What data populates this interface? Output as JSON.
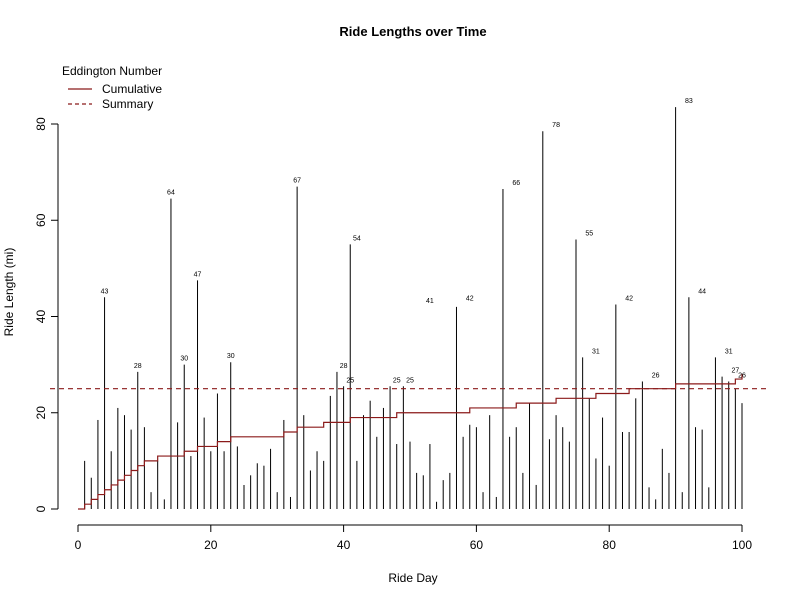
{
  "chart_data": {
    "type": "line",
    "title": "Ride Lengths over Time",
    "xlabel": "Ride Day",
    "ylabel": "Ride Length (mi)",
    "xlim": [
      0,
      100
    ],
    "ylim": [
      0,
      85
    ],
    "x_ticks": [
      0,
      20,
      40,
      60,
      80,
      100
    ],
    "y_ticks": [
      0,
      20,
      40,
      60,
      80
    ],
    "grid": false,
    "legend": {
      "title": "Eddington Number",
      "placement": "top-left",
      "entries": [
        {
          "label": "Cumulative",
          "style": "solid",
          "color": "#8b1a1a"
        },
        {
          "label": "Summary",
          "style": "dashed",
          "color": "#8b1a1a"
        }
      ]
    },
    "rides": {
      "x": [
        1,
        2,
        3,
        4,
        5,
        6,
        7,
        8,
        9,
        10,
        11,
        12,
        13,
        14,
        15,
        16,
        17,
        18,
        19,
        20,
        21,
        22,
        23,
        24,
        25,
        26,
        27,
        28,
        29,
        30,
        31,
        32,
        33,
        34,
        35,
        36,
        37,
        38,
        39,
        40,
        41,
        42,
        43,
        44,
        45,
        46,
        47,
        48,
        49,
        50,
        51,
        52,
        53,
        54,
        55,
        56,
        57,
        58,
        59,
        60,
        61,
        62,
        63,
        64,
        65,
        66,
        67,
        68,
        69,
        70,
        71,
        72,
        73,
        74,
        75,
        76,
        77,
        78,
        79,
        80,
        81,
        82,
        83,
        84,
        85,
        86,
        87,
        88,
        89,
        90,
        91,
        92,
        93,
        94,
        95,
        96,
        97,
        98,
        99,
        100
      ],
      "y": [
        10,
        6.5,
        18.5,
        44,
        12,
        21,
        19.5,
        16.5,
        28.5,
        17,
        3.5,
        10,
        2,
        64.5,
        18,
        30,
        11,
        47.5,
        19,
        12,
        24,
        12,
        30.5,
        13,
        5,
        7,
        9.5,
        9,
        12.5,
        3.5,
        18.5,
        2.5,
        67,
        19.5,
        8,
        12,
        10,
        23.5,
        28.5,
        25.5,
        55,
        10,
        19.5,
        22.5,
        15,
        21,
        25.5,
        13.5,
        25.5,
        14,
        7.5,
        7,
        13.5,
        1.5,
        6,
        7.5,
        42,
        15,
        17.5,
        17,
        3.5,
        19.5,
        2.5,
        66.5,
        15,
        17,
        7.5,
        22,
        5,
        78.5,
        14.5,
        19.5,
        17,
        14,
        56,
        31.5,
        23,
        10.5,
        19,
        9,
        42.5,
        16,
        16,
        23,
        26.5,
        4.5,
        2,
        12.5,
        7.5,
        83.5,
        3.5,
        44,
        17,
        16.5,
        4.5,
        31.5,
        27.5,
        26.5,
        25,
        22
      ]
    },
    "labels": [
      {
        "x": 4,
        "y": 44,
        "text": "43"
      },
      {
        "x": 9,
        "y": 28.5,
        "text": "28"
      },
      {
        "x": 14,
        "y": 64.5,
        "text": "64"
      },
      {
        "x": 16,
        "y": 30,
        "text": "30"
      },
      {
        "x": 18,
        "y": 47.5,
        "text": "47"
      },
      {
        "x": 23,
        "y": 30.5,
        "text": "30"
      },
      {
        "x": 33,
        "y": 67,
        "text": "67"
      },
      {
        "x": 40,
        "y": 28.5,
        "text": "28"
      },
      {
        "x": 41,
        "y": 25.5,
        "text": "25"
      },
      {
        "x": 42,
        "y": 55,
        "text": "54"
      },
      {
        "x": 48,
        "y": 25.5,
        "text": "25"
      },
      {
        "x": 50,
        "y": 25.5,
        "text": "25"
      },
      {
        "x": 53,
        "y": 42,
        "text": "41"
      },
      {
        "x": 59,
        "y": 42.5,
        "text": "42"
      },
      {
        "x": 66,
        "y": 66.5,
        "text": "66"
      },
      {
        "x": 72,
        "y": 78.5,
        "text": "78"
      },
      {
        "x": 77,
        "y": 56,
        "text": "55"
      },
      {
        "x": 78,
        "y": 31.5,
        "text": "31"
      },
      {
        "x": 83,
        "y": 42.5,
        "text": "42"
      },
      {
        "x": 87,
        "y": 26.5,
        "text": "26"
      },
      {
        "x": 92,
        "y": 83.5,
        "text": "83"
      },
      {
        "x": 94,
        "y": 44,
        "text": "44"
      },
      {
        "x": 98,
        "y": 31.5,
        "text": "31"
      },
      {
        "x": 99,
        "y": 27.5,
        "text": "27"
      },
      {
        "x": 100,
        "y": 26.5,
        "text": "26"
      }
    ],
    "cumulative_steps": {
      "x": [
        0,
        1,
        2,
        3,
        4,
        5,
        6,
        7,
        8,
        9,
        10,
        12,
        16,
        18,
        21,
        23,
        31,
        33,
        37,
        41,
        48,
        59,
        66,
        72,
        78,
        83,
        90,
        99,
        100
      ],
      "y": [
        0,
        1,
        2,
        3,
        4,
        5,
        6,
        7,
        8,
        9,
        10,
        11,
        12,
        13,
        14,
        15,
        16,
        17,
        18,
        19,
        20,
        21,
        22,
        23,
        24,
        25,
        26,
        27,
        28
      ]
    },
    "summary_line": {
      "y": 25
    }
  }
}
